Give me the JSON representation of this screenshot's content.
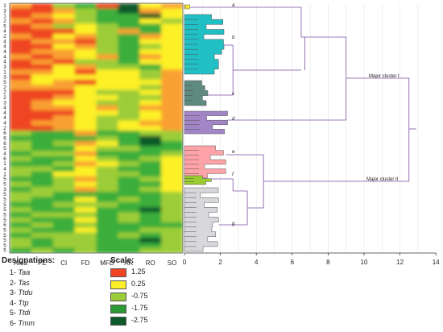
{
  "heatmap": {
    "columns": [
      "Area",
      "PE",
      "CI",
      "FD",
      "MFD",
      "AR",
      "RO",
      "SO"
    ],
    "row_labels": [
      "1",
      "3",
      "1",
      "2",
      "5",
      "4",
      "2",
      "4",
      "4",
      "4",
      "4",
      "4",
      "3",
      "1",
      "3",
      "5",
      "2",
      "2",
      "2",
      "3",
      "4",
      "4",
      "4",
      "4",
      "2",
      "6",
      "6",
      "6",
      "5",
      "4",
      "6",
      "1",
      "4",
      "1",
      "5",
      "5",
      "3",
      "5",
      "5",
      "5",
      "5",
      "5",
      "5",
      "6",
      "5",
      "5",
      "5",
      "5",
      "5"
    ],
    "color_scale": [
      "#ef4523",
      "#f9a030",
      "#fdf028",
      "#9ccd38",
      "#3aae3a",
      "#0e5a2a"
    ]
  },
  "dendrogram": {
    "axis_ticks": [
      "0",
      "2",
      "4",
      "6",
      "8",
      "10",
      "12",
      "14"
    ],
    "annotations": {
      "major_cluster_1": "Major cluster I",
      "major_cluster_2": "Major cluster II"
    },
    "clusters": [
      {
        "label": "a",
        "color": "#fdf028"
      },
      {
        "label": "b",
        "color": "#21c0c4"
      },
      {
        "label": "c",
        "color": "#5f8a80"
      },
      {
        "label": "d",
        "color": "#a285c6"
      },
      {
        "label": "e",
        "color": "#ffa3a8"
      },
      {
        "label": "f",
        "color": "#9acd32"
      },
      {
        "label": "g",
        "color": "#d8d8dc"
      }
    ]
  },
  "legend": {
    "designations_title": "Designations:",
    "designations": [
      {
        "num": "1-",
        "name": "Taa"
      },
      {
        "num": "2-",
        "name": "Tas"
      },
      {
        "num": "3-",
        "name": "Ttdu"
      },
      {
        "num": "4-",
        "name": "Ttp"
      },
      {
        "num": "5-",
        "name": "Ttdi"
      },
      {
        "num": "6-",
        "name": "Tmm"
      }
    ],
    "scale_title": "Scale:",
    "scale": [
      {
        "value": "1.25",
        "color": "#ef4523"
      },
      {
        "value": "0.25",
        "color": "#fdf028"
      },
      {
        "value": "-0.75",
        "color": "#9ccd38"
      },
      {
        "value": "-1.75",
        "color": "#2c9a35"
      },
      {
        "value": "-2.75",
        "color": "#0e5a2a"
      }
    ]
  }
}
